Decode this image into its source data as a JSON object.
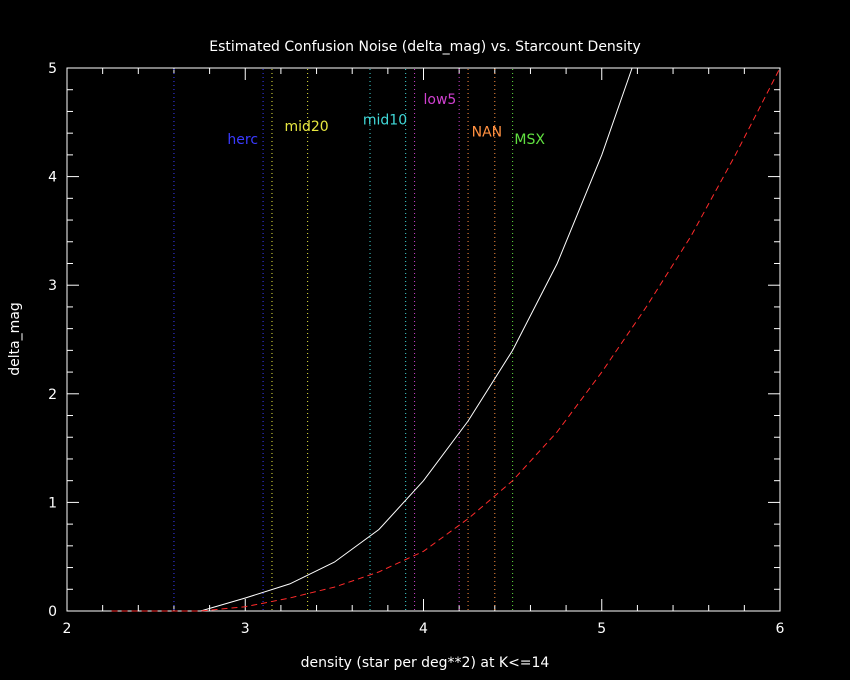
{
  "chart_data": {
    "type": "line",
    "title": "Estimated Confusion Noise (delta_mag) vs. Starcount Density",
    "xlabel": "density (star per deg**2) at K<=14",
    "ylabel": "delta_mag",
    "xlim": [
      2,
      6
    ],
    "ylim": [
      0,
      5
    ],
    "x_ticks": [
      2,
      3,
      4,
      5,
      6
    ],
    "y_ticks": [
      0,
      1,
      2,
      3,
      4,
      5
    ],
    "grid": false,
    "background_color": "#000000",
    "axis_color": "#ffffff",
    "series": [
      {
        "color": "#ffffff",
        "style": "solid",
        "points": [
          [
            2.75,
            0.0
          ],
          [
            3.0,
            0.12
          ],
          [
            3.25,
            0.25
          ],
          [
            3.5,
            0.45
          ],
          [
            3.75,
            0.75
          ],
          [
            4.0,
            1.2
          ],
          [
            4.25,
            1.75
          ],
          [
            4.5,
            2.4
          ],
          [
            4.75,
            3.2
          ],
          [
            5.0,
            4.2
          ],
          [
            5.17,
            5.0
          ]
        ]
      },
      {
        "color": "#ff2a2a",
        "style": "dashed",
        "points": [
          [
            2.25,
            0.0
          ],
          [
            2.5,
            0.0
          ],
          [
            2.75,
            0.0
          ],
          [
            3.0,
            0.04
          ],
          [
            3.25,
            0.12
          ],
          [
            3.5,
            0.22
          ],
          [
            3.75,
            0.36
          ],
          [
            4.0,
            0.55
          ],
          [
            4.25,
            0.85
          ],
          [
            4.5,
            1.2
          ],
          [
            4.75,
            1.65
          ],
          [
            5.0,
            2.2
          ],
          [
            5.25,
            2.8
          ],
          [
            5.5,
            3.45
          ],
          [
            5.75,
            4.2
          ],
          [
            6.0,
            5.0
          ]
        ]
      }
    ],
    "vertical_lines": [
      {
        "x": 2.6,
        "color": "#3a3aff"
      },
      {
        "x": 3.1,
        "color": "#3a3aff"
      },
      {
        "x": 3.15,
        "color": "#e8e840"
      },
      {
        "x": 3.35,
        "color": "#e8e840"
      },
      {
        "x": 3.7,
        "color": "#40d8d8"
      },
      {
        "x": 3.9,
        "color": "#40d8d8"
      },
      {
        "x": 3.95,
        "color": "#d040d0"
      },
      {
        "x": 4.2,
        "color": "#d040d0"
      },
      {
        "x": 4.25,
        "color": "#ff9040"
      },
      {
        "x": 4.4,
        "color": "#ff9040"
      },
      {
        "x": 4.5,
        "color": "#60e040"
      }
    ],
    "annotations": [
      {
        "text": "herc",
        "x": 2.9,
        "y": 4.3,
        "color": "#3a3aff"
      },
      {
        "text": "mid20",
        "x": 3.22,
        "y": 4.42,
        "color": "#e8e840"
      },
      {
        "text": "mid10",
        "x": 3.66,
        "y": 4.48,
        "color": "#40d8d8"
      },
      {
        "text": "low5",
        "x": 4.0,
        "y": 4.67,
        "color": "#d040d0"
      },
      {
        "text": "NAN",
        "x": 4.27,
        "y": 4.37,
        "color": "#ff9040"
      },
      {
        "text": "MSX",
        "x": 4.51,
        "y": 4.3,
        "color": "#60e040"
      }
    ]
  }
}
